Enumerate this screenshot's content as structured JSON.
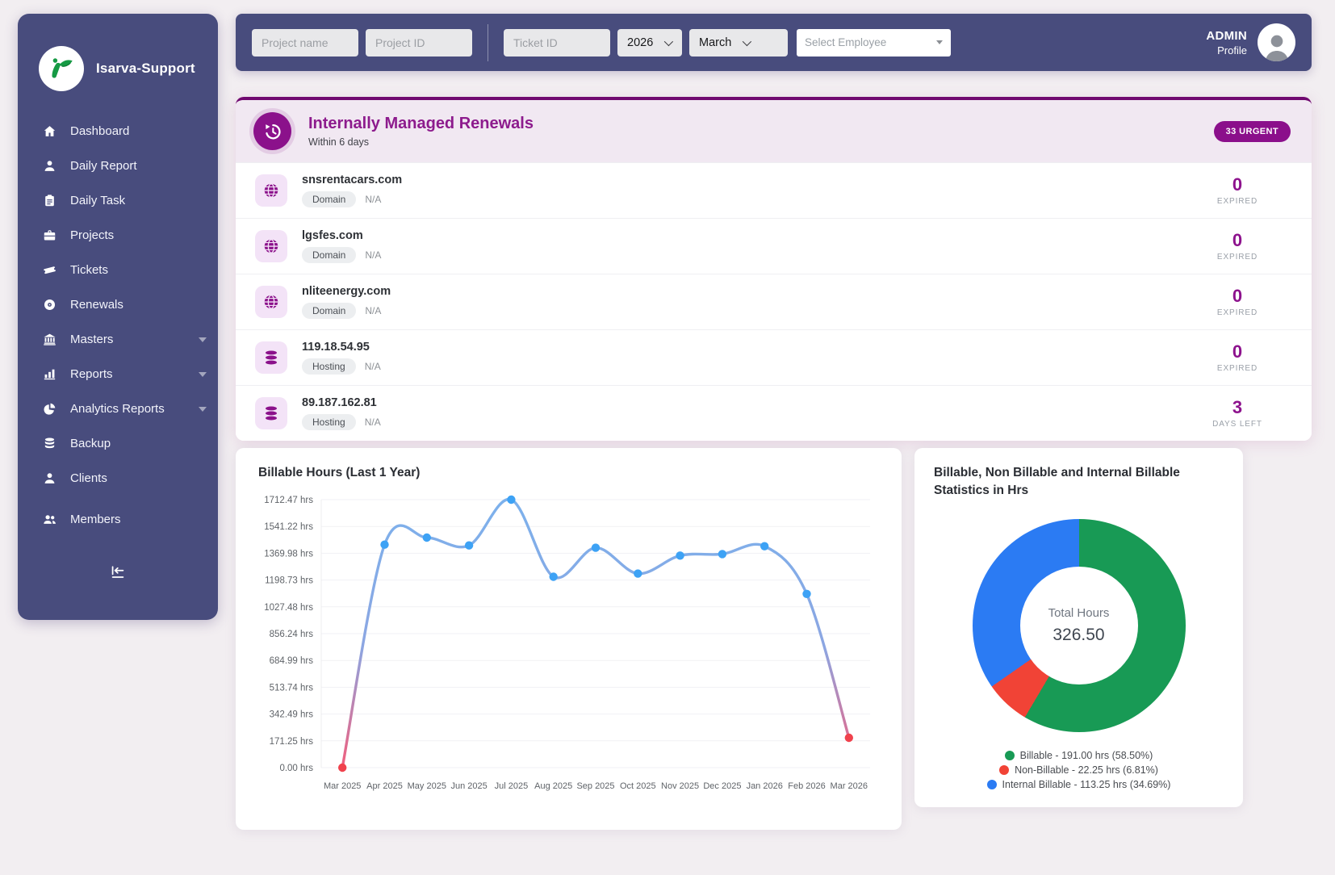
{
  "sidebar": {
    "brand": "Isarva-Support",
    "items": [
      {
        "label": "Dashboard",
        "icon": "home"
      },
      {
        "label": "Daily Report",
        "icon": "user"
      },
      {
        "label": "Daily Task",
        "icon": "clipboard"
      },
      {
        "label": "Projects",
        "icon": "briefcase"
      },
      {
        "label": "Tickets",
        "icon": "ticket"
      },
      {
        "label": "Renewals",
        "icon": "disc"
      },
      {
        "label": "Masters",
        "icon": "bank",
        "caret": true
      },
      {
        "label": "Reports",
        "icon": "chart-bar",
        "caret": true
      },
      {
        "label": "Analytics Reports",
        "icon": "chart-pie",
        "caret": true
      },
      {
        "label": "Backup",
        "icon": "database"
      },
      {
        "label": "Clients",
        "icon": "user"
      },
      {
        "label": "Members",
        "icon": "users"
      }
    ]
  },
  "topbar": {
    "filters": {
      "project_name_placeholder": "Project name",
      "project_id_placeholder": "Project ID",
      "ticket_id_placeholder": "Ticket ID",
      "year_value": "2026",
      "month_value": "March",
      "employee_placeholder": "Select Employee"
    },
    "user": {
      "name": "ADMIN",
      "role": "Profile"
    }
  },
  "renewals": {
    "title": "Internally Managed Renewals",
    "subtitle": "Within 6 days",
    "badge": "33 URGENT",
    "rows": [
      {
        "name": "snsrentacars.com",
        "type": "Domain",
        "icon": "globe",
        "extra": "N/A",
        "value": "0",
        "value_label": "EXPIRED"
      },
      {
        "name": "lgsfes.com",
        "type": "Domain",
        "icon": "globe",
        "extra": "N/A",
        "value": "0",
        "value_label": "EXPIRED"
      },
      {
        "name": "nliteenergy.com",
        "type": "Domain",
        "icon": "globe",
        "extra": "N/A",
        "value": "0",
        "value_label": "EXPIRED"
      },
      {
        "name": "119.18.54.95",
        "type": "Hosting",
        "icon": "server",
        "extra": "N/A",
        "value": "0",
        "value_label": "EXPIRED"
      },
      {
        "name": "89.187.162.81",
        "type": "Hosting",
        "icon": "server",
        "extra": "N/A",
        "value": "3",
        "value_label": "DAYS LEFT"
      }
    ]
  },
  "chart_data": [
    {
      "type": "line",
      "title": "Billable Hours (Last 1 Year)",
      "x": [
        "Mar 2025",
        "Apr 2025",
        "May 2025",
        "Jun 2025",
        "Jul 2025",
        "Aug 2025",
        "Sep 2025",
        "Oct 2025",
        "Nov 2025",
        "Dec 2025",
        "Jan 2026",
        "Feb 2026",
        "Mar 2026"
      ],
      "values": [
        0,
        1425,
        1470,
        1420,
        1712.47,
        1220,
        1405,
        1240,
        1355,
        1365,
        1415,
        1110,
        191
      ],
      "y_ticks": [
        "0.00 hrs",
        "171.25 hrs",
        "342.49 hrs",
        "513.74 hrs",
        "684.99 hrs",
        "856.24 hrs",
        "1027.48 hrs",
        "1198.73 hrs",
        "1369.98 hrs",
        "1541.22 hrs",
        "1712.47 hrs"
      ],
      "xlabel": "",
      "ylabel": "",
      "ylim": [
        0,
        1712.47
      ],
      "grid": true,
      "legend": "none",
      "point_color": "#3da2f5",
      "endpoint_color": "#f0424d",
      "line_top_color": "#7cb1ec",
      "line_bottom_color": "#f15f7d"
    },
    {
      "type": "pie",
      "title": "Billable, Non Billable and Internal Billable Statistics in Hrs",
      "center_label": "Total Hours",
      "center_value": "326.50",
      "legend_position": "bottom",
      "segments": [
        {
          "label": "Billable - 191.00 hrs (58.50%)",
          "value": 58.5,
          "color": "#189a55"
        },
        {
          "label": "Non-Billable - 22.25 hrs (6.81%)",
          "value": 6.81,
          "color": "#f14336"
        },
        {
          "label": "Internal Billable - 113.25 hrs (34.69%)",
          "value": 34.69,
          "color": "#2b7bf3"
        }
      ]
    }
  ]
}
